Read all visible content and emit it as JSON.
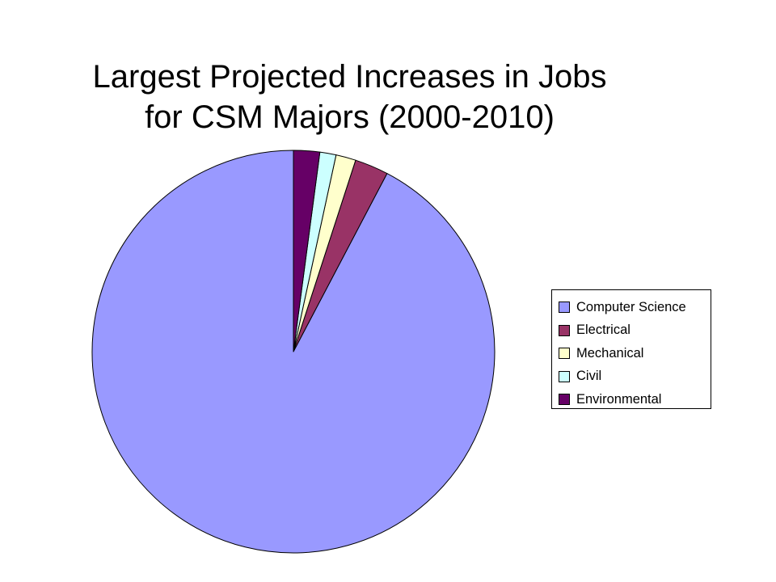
{
  "chart_data": {
    "type": "pie",
    "title": [
      "Largest Projected Increases in Jobs",
      "for CSM Majors (2000-2010)"
    ],
    "categories": [
      "Computer Science",
      "Electrical",
      "Mechanical",
      "Civil",
      "Environmental"
    ],
    "values": [
      92.3,
      2.7,
      1.6,
      1.3,
      2.1
    ],
    "colors": [
      "#9999FF",
      "#993366",
      "#FFFFCC",
      "#CCFFFF",
      "#660066"
    ],
    "legend_position": "right",
    "start_angle": "12 o'clock",
    "direction": "counterclockwise"
  }
}
